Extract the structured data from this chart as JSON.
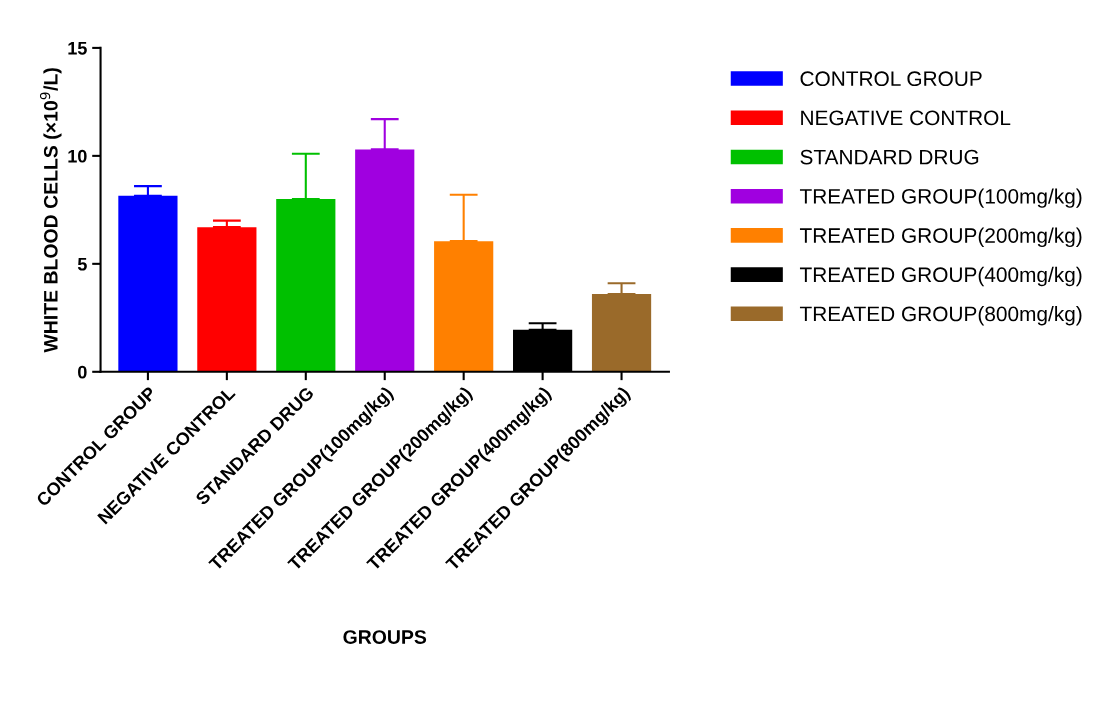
{
  "chart_data": {
    "type": "bar",
    "xlabel": "GROUPS",
    "ylabel": "WHITE BLOOD CELLS (×10$^{9}$/L)",
    "categories": [
      "CONTROL GROUP",
      "NEGATIVE CONTROL",
      "STANDARD DRUG",
      "TREATED GROUP(100mg/kg)",
      "TREATED GROUP(200mg/kg)",
      "TREATED GROUP(400mg/kg)",
      "TREATED GROUP(800mg/kg)"
    ],
    "series": [
      {
        "name": "CONTROL GROUP",
        "color": "#0000ff",
        "values": [
          8.15,
          null,
          null,
          null,
          null,
          null,
          null
        ],
        "errors": [
          [
            8.15,
            8.6
          ],
          null,
          null,
          null,
          null,
          null,
          null
        ]
      },
      {
        "name": "NEGATIVE CONTROL",
        "color": "#ff0000",
        "values": [
          null,
          6.7,
          null,
          null,
          null,
          null,
          null
        ],
        "errors": [
          null,
          [
            6.7,
            7.0
          ],
          null,
          null,
          null,
          null,
          null
        ]
      },
      {
        "name": "STANDARD DRUG",
        "color": "#00c000",
        "values": [
          null,
          null,
          8.0,
          null,
          null,
          null,
          null
        ],
        "errors": [
          null,
          null,
          [
            8.0,
            10.1
          ],
          null,
          null,
          null,
          null
        ]
      },
      {
        "name": "TREATED GROUP(100mg/kg)",
        "color": "#a000e0",
        "values": [
          null,
          null,
          null,
          10.3,
          null,
          null,
          null
        ],
        "errors": [
          null,
          null,
          null,
          [
            10.3,
            11.7
          ],
          null,
          null,
          null
        ]
      },
      {
        "name": "TREATED GROUP(200mg/kg)",
        "color": "#ff8000",
        "values": [
          null,
          null,
          null,
          null,
          6.05,
          null,
          null
        ],
        "errors": [
          null,
          null,
          null,
          null,
          [
            6.05,
            8.2
          ],
          null,
          null
        ]
      },
      {
        "name": "TREATED GROUP(400mg/kg)",
        "color": "#000000",
        "values": [
          null,
          null,
          null,
          null,
          null,
          1.95,
          null
        ],
        "errors": [
          null,
          null,
          null,
          null,
          null,
          [
            1.95,
            2.25
          ],
          null
        ]
      },
      {
        "name": "TREATED GROUP(800mg/kg)",
        "color": "#9a6a2a",
        "values": [
          null,
          null,
          null,
          null,
          null,
          null,
          3.6
        ],
        "errors": [
          null,
          null,
          null,
          null,
          null,
          null,
          [
            3.6,
            4.1
          ]
        ]
      }
    ],
    "ylim": [
      0,
      15
    ],
    "yticks": [
      0,
      5,
      10,
      15
    ],
    "grid": false,
    "legend": "right"
  }
}
